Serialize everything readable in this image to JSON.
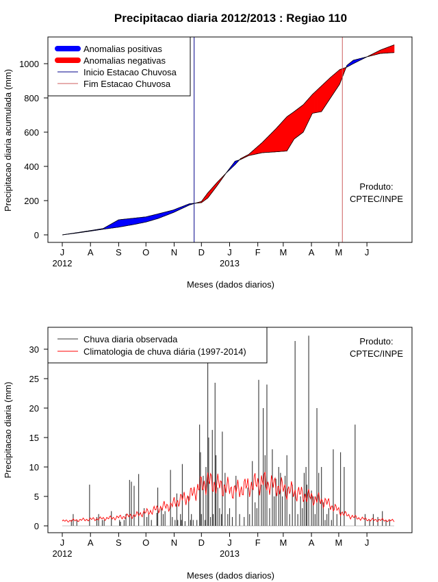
{
  "title": "Precipitacao diaria 2012/2013 : Regiao 110",
  "months": [
    "J",
    "A",
    "S",
    "O",
    "N",
    "D",
    "J",
    "F",
    "M",
    "A",
    "M",
    "J"
  ],
  "year_labels": [
    "2012",
    "2013"
  ],
  "product": {
    "line1": "Produto:",
    "line2": "CPTEC/INPE"
  },
  "chart_data": [
    {
      "type": "area",
      "xlabel": "Meses (dados diarios)",
      "ylabel": "Precipitacao diaria acumulada (mm)",
      "ylim": [
        0,
        1100
      ],
      "yticks": [
        "0",
        "200",
        "400",
        "600",
        "800",
        "1000"
      ],
      "legend": {
        "position": "top-left",
        "entries": [
          {
            "label": "Anomalias positivas",
            "color": "#0000ff"
          },
          {
            "label": "Anomalias negativas",
            "color": "#ff0000"
          },
          {
            "label": "Inicio Estacao Chuvosa",
            "color": "#00008b"
          },
          {
            "label": "Fim Estacao Chuvosa",
            "color": "#cd5c5c"
          }
        ]
      },
      "onset_day": 145,
      "end_day": 308,
      "x_day": [
        0,
        15,
        31,
        45,
        62,
        80,
        92,
        105,
        122,
        140,
        153,
        160,
        170,
        180,
        190,
        196,
        205,
        220,
        235,
        247,
        255,
        265,
        275,
        285,
        295,
        305,
        313,
        320,
        335,
        350,
        365
      ],
      "observed": [
        0,
        12,
        25,
        37,
        88,
        98,
        105,
        122,
        145,
        182,
        188,
        215,
        285,
        360,
        430,
        440,
        463,
        480,
        485,
        490,
        560,
        600,
        710,
        720,
        800,
        880,
        990,
        1020,
        1040,
        1060,
        1065
      ],
      "climatology": [
        0,
        10,
        22,
        33,
        45,
        62,
        75,
        95,
        130,
        175,
        195,
        245,
        305,
        360,
        410,
        445,
        470,
        540,
        620,
        690,
        720,
        760,
        820,
        870,
        920,
        965,
        980,
        1000,
        1040,
        1080,
        1110
      ]
    },
    {
      "type": "bar",
      "xlabel": "Meses (dados diarios)",
      "ylabel": "Precipitacao diaria (mm)",
      "ylim": [
        0,
        32
      ],
      "yticks": [
        "0",
        "5",
        "10",
        "15",
        "20",
        "25",
        "30"
      ],
      "legend": {
        "position": "top-left",
        "entries": [
          {
            "label": "Chuva diaria observada",
            "color": "#333333"
          },
          {
            "label": "Climatologia de chuva diária (1997-2014)",
            "color": "#ff0000"
          }
        ]
      },
      "observed_days": [
        10,
        12,
        16,
        30,
        38,
        40,
        44,
        46,
        54,
        63,
        64,
        68,
        70,
        74,
        76,
        79,
        84,
        90,
        93,
        95,
        98,
        104,
        105,
        109,
        111,
        113,
        119,
        121,
        124,
        126,
        127,
        130,
        131,
        132,
        135,
        139,
        141,
        142,
        144,
        148,
        151,
        152,
        153,
        155,
        157,
        158,
        160,
        161,
        163,
        165,
        166,
        168,
        169,
        171,
        173,
        175,
        176,
        179,
        182,
        184,
        187,
        191,
        195,
        200,
        204,
        206,
        209,
        212,
        214,
        216,
        219,
        221,
        223,
        225,
        228,
        231,
        233,
        235,
        238,
        240,
        242,
        245,
        247,
        250,
        253,
        256,
        259,
        262,
        264,
        266,
        268,
        269,
        271,
        274,
        276,
        278,
        280,
        282,
        285,
        287,
        289,
        291,
        293,
        296,
        298,
        302,
        306,
        310,
        322,
        333,
        338,
        342,
        347,
        352,
        356,
        360
      ],
      "observed_values": [
        1.0,
        2.0,
        1.0,
        7.0,
        1.5,
        2.0,
        1.0,
        1.0,
        2.5,
        1.0,
        0.7,
        1.0,
        2.0,
        7.8,
        7.5,
        6.8,
        8.8,
        3.0,
        1.5,
        2.0,
        1.0,
        2.2,
        6.5,
        3.0,
        2.0,
        2.5,
        9.5,
        1.5,
        1.0,
        5.5,
        1.0,
        2.0,
        1.0,
        10.5,
        0.8,
        5.0,
        1.0,
        2.0,
        1.0,
        1.0,
        17.2,
        12.5,
        2.0,
        8.5,
        1.0,
        10.0,
        28.0,
        15.0,
        1.5,
        16.3,
        2.0,
        24.3,
        12.0,
        6.5,
        3.0,
        2.0,
        16.0,
        9.0,
        2.0,
        3.0,
        1.5,
        8.5,
        2.0,
        1.5,
        6.5,
        2.0,
        11.0,
        4.0,
        3.0,
        24.8,
        7.0,
        20.0,
        12.0,
        24.0,
        3.0,
        13.0,
        5.0,
        8.0,
        10.0,
        9.0,
        5.0,
        8.5,
        12.0,
        2.0,
        7.0,
        31.4,
        2.0,
        5.0,
        3.0,
        9.0,
        10.0,
        7.0,
        32.3,
        6.0,
        5.0,
        2.0,
        20.0,
        9.0,
        10.0,
        4.0,
        1.0,
        2.0,
        3.0,
        1.0,
        13.0,
        2.0,
        12.5,
        10.0,
        17.2,
        2.0,
        1.0,
        2.0,
        1.5,
        2.5,
        1.0,
        1.0
      ],
      "clim_days": [
        0,
        10,
        20,
        30,
        40,
        50,
        60,
        70,
        80,
        90,
        100,
        110,
        120,
        130,
        140,
        150,
        160,
        170,
        180,
        190,
        200,
        210,
        220,
        230,
        240,
        250,
        260,
        270,
        280,
        290,
        300,
        310,
        320,
        330,
        340,
        350,
        360
      ],
      "clim_values": [
        0.8,
        0.9,
        1.0,
        1.1,
        1.2,
        1.3,
        1.4,
        1.6,
        1.8,
        2.2,
        2.6,
        3.2,
        3.5,
        4.5,
        5.0,
        6.5,
        7.5,
        7.0,
        6.5,
        6.0,
        6.5,
        7.0,
        7.5,
        7.0,
        6.5,
        6.0,
        5.5,
        5.0,
        4.5,
        4.0,
        3.0,
        2.0,
        1.5,
        1.2,
        1.0,
        1.0,
        0.9
      ]
    }
  ]
}
